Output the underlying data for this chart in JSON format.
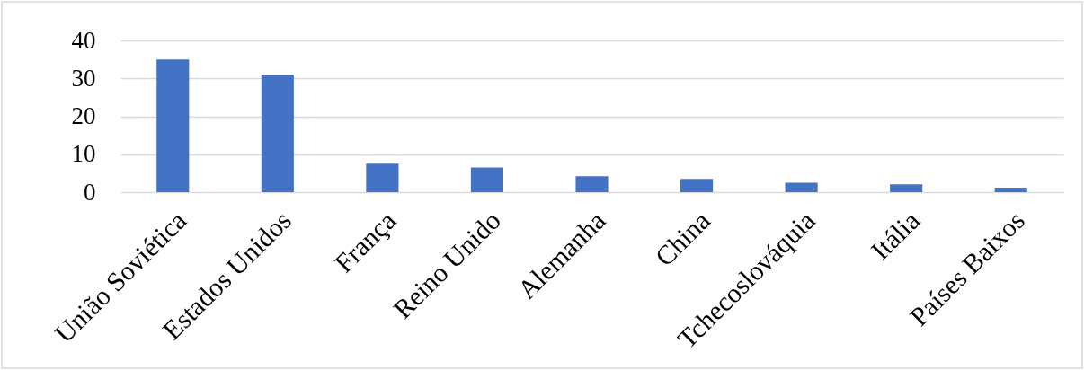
{
  "chart_data": {
    "type": "bar",
    "categories": [
      "União Soviética",
      "Estados Unidos",
      "França",
      "Reino Unido",
      "Alemanha",
      "China",
      "Tchecoslováquia",
      "Itália",
      "Países Baixos"
    ],
    "values": [
      35,
      31,
      7.5,
      6.5,
      4.2,
      3.5,
      2.5,
      2.1,
      1.2
    ],
    "color": "#4472c4",
    "ylim": [
      0,
      40
    ],
    "yticks": [
      0,
      10,
      20,
      30,
      40
    ],
    "grid": "y"
  }
}
